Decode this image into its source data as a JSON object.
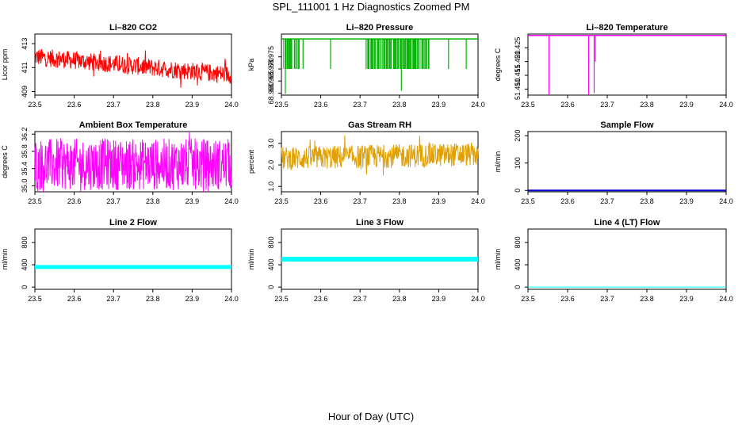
{
  "figure": {
    "title": "SPL_111001  1 Hz Diagnostics Zoomed PM",
    "xlabel": "Hour of Day (UTC)"
  },
  "chart_data": [
    {
      "type": "line",
      "title": "Li–820 CO2",
      "ylabel": "Licor ppm",
      "color": "#ff0000",
      "xlim": [
        23.5,
        24.0
      ],
      "xticks": [
        "23.5",
        "23.6",
        "23.7",
        "23.8",
        "23.9",
        "24.0"
      ],
      "ylim": [
        408.7,
        413.8
      ],
      "yticks": [
        409,
        411,
        413
      ],
      "ytick_labels": [
        "409",
        "411",
        "413"
      ],
      "series": [
        {
          "name": "CO2",
          "pattern": "noise",
          "start": 411.9,
          "end": 410.4,
          "spread": 0.75
        }
      ]
    },
    {
      "type": "line",
      "title": "Li–820 Pressure",
      "ylabel": "kPa",
      "color": "#00b400",
      "xlim": [
        23.5,
        24.0
      ],
      "xticks": [
        "23.5",
        "23.6",
        "23.7",
        "23.8",
        "23.9",
        "24.0"
      ],
      "ylim": [
        68.9592,
        68.9844
      ],
      "yticks": [
        68.96,
        68.965,
        68.97,
        68.975
      ],
      "ytick_labels": [
        "68.960",
        "68.965",
        "68.970",
        "68.975"
      ],
      "series": [
        {
          "name": "Pressure",
          "pattern": "steps",
          "high": 68.9824,
          "low": 68.97,
          "drops": [
            [
              23.51,
              68.9598
            ],
            [
              23.515,
              68.97
            ],
            [
              23.525,
              68.97
            ],
            [
              23.545,
              68.97
            ],
            [
              23.555,
              68.97
            ],
            [
              23.625,
              68.97
            ],
            [
              23.72,
              68.97
            ],
            [
              23.73,
              68.97
            ],
            [
              23.745,
              68.97
            ],
            [
              23.76,
              68.97
            ],
            [
              23.775,
              68.97
            ],
            [
              23.79,
              68.97
            ],
            [
              23.805,
              68.961
            ],
            [
              23.82,
              68.97
            ],
            [
              23.84,
              68.97
            ],
            [
              23.86,
              68.97
            ],
            [
              23.875,
              68.97
            ],
            [
              23.925,
              68.97
            ],
            [
              23.97,
              68.97
            ]
          ],
          "dense_bands": [
            [
              23.505,
              23.545
            ],
            [
              23.715,
              23.875
            ]
          ]
        }
      ]
    },
    {
      "type": "line",
      "title": "Li–820 Temperature",
      "ylabel": "degrees C",
      "color": "#ff00ff",
      "xlim": [
        23.5,
        24.0
      ],
      "xticks": [
        "23.5",
        "23.6",
        "23.7",
        "23.8",
        "23.9",
        "24.0"
      ],
      "ylim": [
        51.4078,
        51.43
      ],
      "yticks": [
        51.41,
        51.415,
        51.42,
        51.425
      ],
      "ytick_labels": [
        "51.410",
        "51.415",
        "51.420",
        "51.425"
      ],
      "series": [
        {
          "name": "Temperature",
          "pattern": "steps",
          "high": 51.4295,
          "low": 51.429,
          "drops": [
            [
              23.553,
              51.408
            ],
            [
              23.653,
              51.408
            ],
            [
              23.667,
              51.4085
            ],
            [
              23.67,
              51.42
            ]
          ],
          "dense_bands": []
        }
      ]
    },
    {
      "type": "line",
      "title": "Ambient Box Temperature",
      "ylabel": "degrees C",
      "color": "#ff00ff",
      "xlim": [
        23.5,
        24.0
      ],
      "xticks": [
        "23.5",
        "23.6",
        "23.7",
        "23.8",
        "23.9",
        "24.0"
      ],
      "ylim": [
        34.86,
        36.26
      ],
      "yticks": [
        35.0,
        35.4,
        35.8,
        36.2
      ],
      "ytick_labels": [
        "35.0",
        "35.4",
        "35.8",
        "36.2"
      ],
      "series": [
        {
          "name": "Box Temp",
          "pattern": "noise",
          "start": 35.5,
          "end": 35.5,
          "spread": 0.6
        }
      ]
    },
    {
      "type": "line",
      "title": "Gas Stream RH",
      "ylabel": "percent",
      "color": "#e0a000",
      "xlim": [
        23.5,
        24.0
      ],
      "xticks": [
        "23.5",
        "23.6",
        "23.7",
        "23.8",
        "23.9",
        "24.0"
      ],
      "ylim": [
        0.75,
        3.55
      ],
      "yticks": [
        1.0,
        2.0,
        3.0
      ],
      "ytick_labels": [
        "1.0",
        "2.0",
        "3.0"
      ],
      "series": [
        {
          "name": "RH",
          "pattern": "noise",
          "start": 2.3,
          "end": 2.5,
          "spread": 0.55
        }
      ]
    },
    {
      "type": "line",
      "title": "Sample Flow",
      "ylabel": "ml/min",
      "color": "#0000cd",
      "xlim": [
        23.5,
        24.0
      ],
      "xticks": [
        "23.5",
        "23.6",
        "23.7",
        "23.8",
        "23.9",
        "24.0"
      ],
      "ylim": [
        -5,
        215
      ],
      "yticks": [
        0,
        100,
        200
      ],
      "ytick_labels": [
        "0",
        "100",
        "200"
      ],
      "series": [
        {
          "name": "Sample Flow",
          "pattern": "flat",
          "value": 0,
          "width": 2
        }
      ]
    },
    {
      "type": "line",
      "title": "Line 2 Flow",
      "ylabel": "ml/min",
      "color": "#00ffff",
      "xlim": [
        23.5,
        24.0
      ],
      "xticks": [
        "23.5",
        "23.6",
        "23.7",
        "23.8",
        "23.9",
        "24.0"
      ],
      "ylim": [
        -40,
        1040
      ],
      "yticks": [
        0,
        400,
        800
      ],
      "ytick_labels": [
        "0",
        "400",
        "800"
      ],
      "series": [
        {
          "name": "Line 2",
          "pattern": "flat",
          "value": 360,
          "width": 5
        }
      ]
    },
    {
      "type": "line",
      "title": "Line 3 Flow",
      "ylabel": "ml/min",
      "color": "#00ffff",
      "xlim": [
        23.5,
        24.0
      ],
      "xticks": [
        "23.5",
        "23.6",
        "23.7",
        "23.8",
        "23.9",
        "24.0"
      ],
      "ylim": [
        -40,
        1040
      ],
      "yticks": [
        0,
        400,
        800
      ],
      "ytick_labels": [
        "0",
        "400",
        "800"
      ],
      "series": [
        {
          "name": "Line 3",
          "pattern": "flat",
          "value": 500,
          "width": 6
        }
      ]
    },
    {
      "type": "line",
      "title": "Line 4 (LT) Flow",
      "ylabel": "ml/min",
      "color": "#00ffff",
      "xlim": [
        23.5,
        24.0
      ],
      "xticks": [
        "23.5",
        "23.6",
        "23.7",
        "23.8",
        "23.9",
        "24.0"
      ],
      "ylim": [
        -40,
        1040
      ],
      "yticks": [
        0,
        400,
        800
      ],
      "ytick_labels": [
        "0",
        "400",
        "800"
      ],
      "series": [
        {
          "name": "Line 4",
          "pattern": "flat",
          "value": 0,
          "width": 1
        }
      ]
    }
  ]
}
